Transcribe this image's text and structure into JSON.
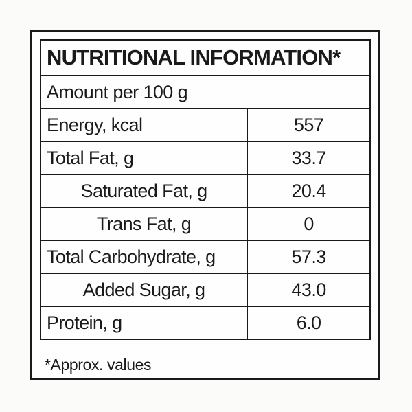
{
  "label": {
    "title": "NUTRITIONAL INFORMATION*",
    "serving_header": "Amount per 100 g",
    "rows": [
      {
        "name": "Energy, kcal",
        "value": "557",
        "indent": false
      },
      {
        "name": "Total Fat, g",
        "value": "33.7",
        "indent": false
      },
      {
        "name": "Saturated Fat, g",
        "value": "20.4",
        "indent": true
      },
      {
        "name": "Trans Fat, g",
        "value": "0",
        "indent": true
      },
      {
        "name": "Total Carbohydrate, g",
        "value": "57.3",
        "indent": false
      },
      {
        "name": "Added Sugar, g",
        "value": "43.0",
        "indent": true
      },
      {
        "name": "Protein, g",
        "value": "6.0",
        "indent": false
      }
    ],
    "footnote": "*Approx. values",
    "colors": {
      "ink": "#1a1a1a",
      "paper": "#fefefe"
    }
  }
}
